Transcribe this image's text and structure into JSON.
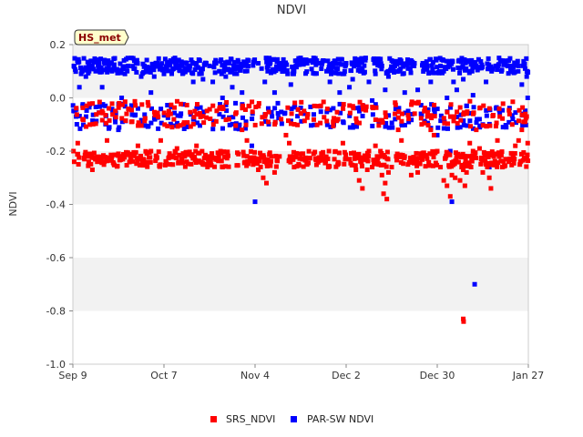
{
  "chart_data": {
    "type": "scatter",
    "title": "NDVI",
    "xlabel": "",
    "ylabel": "NDVI",
    "badge": "HS_met",
    "x_start": "Sep 9",
    "x_range_days": [
      0,
      140
    ],
    "ylim": [
      -1.0,
      0.2
    ],
    "x_ticks": [
      {
        "label": "Sep 9",
        "day": 0
      },
      {
        "label": "Oct 7",
        "day": 28
      },
      {
        "label": "Nov 4",
        "day": 56
      },
      {
        "label": "Dec 2",
        "day": 84
      },
      {
        "label": "Dec 30",
        "day": 112
      },
      {
        "label": "Jan 27",
        "day": 140
      }
    ],
    "y_ticks": [
      {
        "label": "0.2",
        "value": 0.2
      },
      {
        "label": "0.0",
        "value": 0.0
      },
      {
        "label": "-0.2",
        "value": -0.2
      },
      {
        "label": "-0.4",
        "value": -0.4
      },
      {
        "label": "-0.6",
        "value": -0.6
      },
      {
        "label": "-0.8",
        "value": -0.8
      },
      {
        "label": "-1.0",
        "value": -1.0
      }
    ],
    "bands": [
      {
        "from": 0.0,
        "to": 0.2
      },
      {
        "from": -0.4,
        "to": -0.2
      },
      {
        "from": -0.8,
        "to": -0.6
      }
    ],
    "series": [
      {
        "name": "SRS_NDVI",
        "color": "#ff0000",
        "daily_pattern": {
          "morning": -0.06,
          "midday": -0.23,
          "spread": 0.03
        },
        "points": [
          [
            0.2,
            -0.2
          ],
          [
            0.4,
            -0.24
          ],
          [
            1.5,
            -0.17
          ],
          [
            3.0,
            -0.08
          ],
          [
            4.5,
            -0.22
          ],
          [
            6.0,
            -0.27
          ],
          [
            7.5,
            -0.24
          ],
          [
            9.0,
            -0.05
          ],
          [
            10.5,
            -0.16
          ],
          [
            12.0,
            -0.22
          ],
          [
            14.0,
            -0.21
          ],
          [
            16.5,
            -0.06
          ],
          [
            18.0,
            -0.09
          ],
          [
            20.0,
            -0.18
          ],
          [
            22.0,
            -0.25
          ],
          [
            24.0,
            -0.2
          ],
          [
            27.0,
            -0.16
          ],
          [
            29.5,
            -0.05
          ],
          [
            30.5,
            -0.11
          ],
          [
            32.0,
            -0.19
          ],
          [
            35.0,
            -0.24
          ],
          [
            37.5,
            -0.05
          ],
          [
            38.0,
            -0.18
          ],
          [
            40.0,
            -0.25
          ],
          [
            42.0,
            -0.22
          ],
          [
            44.0,
            -0.23
          ],
          [
            46.0,
            -0.26
          ],
          [
            48.0,
            -0.08
          ],
          [
            50.0,
            -0.06
          ],
          [
            52.0,
            -0.12
          ],
          [
            53.5,
            -0.16
          ],
          [
            55.0,
            -0.23
          ],
          [
            57.0,
            -0.27
          ],
          [
            58.5,
            -0.3
          ],
          [
            59.5,
            -0.32
          ],
          [
            61.0,
            -0.22
          ],
          [
            62.0,
            -0.28
          ],
          [
            63.5,
            -0.22
          ],
          [
            64.0,
            -0.08
          ],
          [
            65.5,
            -0.14
          ],
          [
            66.5,
            -0.17
          ],
          [
            67.0,
            -0.23
          ],
          [
            68.0,
            -0.26
          ],
          [
            70.0,
            -0.21
          ],
          [
            72.0,
            -0.25
          ],
          [
            74.0,
            -0.21
          ],
          [
            76.0,
            -0.23
          ],
          [
            78.5,
            -0.26
          ],
          [
            80.0,
            -0.09
          ],
          [
            81.5,
            -0.08
          ],
          [
            83.0,
            -0.17
          ],
          [
            85.0,
            -0.23
          ],
          [
            87.0,
            -0.27
          ],
          [
            88.0,
            -0.31
          ],
          [
            89.0,
            -0.34
          ],
          [
            90.5,
            -0.27
          ],
          [
            91.0,
            -0.2
          ],
          [
            92.0,
            -0.26
          ],
          [
            93.0,
            -0.18
          ],
          [
            93.5,
            -0.22
          ],
          [
            94.0,
            -0.25
          ],
          [
            95.0,
            -0.29
          ],
          [
            95.5,
            -0.36
          ],
          [
            96.0,
            -0.32
          ],
          [
            96.5,
            -0.38
          ],
          [
            97.0,
            -0.28
          ],
          [
            98.0,
            -0.26
          ],
          [
            99.0,
            -0.06
          ],
          [
            100.0,
            -0.12
          ],
          [
            101.0,
            -0.16
          ],
          [
            102.0,
            -0.22
          ],
          [
            103.0,
            -0.25
          ],
          [
            104.0,
            -0.29
          ],
          [
            105.0,
            -0.24
          ],
          [
            106.0,
            -0.28
          ],
          [
            107.0,
            -0.22
          ],
          [
            108.0,
            -0.05
          ],
          [
            109.0,
            -0.07
          ],
          [
            110.0,
            -0.12
          ],
          [
            111.0,
            -0.14
          ],
          [
            112.0,
            -0.2
          ],
          [
            113.0,
            -0.26
          ],
          [
            114.0,
            -0.31
          ],
          [
            115.0,
            -0.33
          ],
          [
            116.0,
            -0.37
          ],
          [
            116.5,
            -0.29
          ],
          [
            117.0,
            -0.24
          ],
          [
            117.5,
            -0.3
          ],
          [
            118.0,
            -0.22
          ],
          [
            119.0,
            -0.31
          ],
          [
            119.5,
            -0.26
          ],
          [
            120.0,
            -0.27
          ],
          [
            120.5,
            -0.33
          ],
          [
            121.0,
            -0.28
          ],
          [
            122.0,
            -0.17
          ],
          [
            123.0,
            -0.2
          ],
          [
            124.0,
            -0.12
          ],
          [
            125.0,
            -0.19
          ],
          [
            125.5,
            -0.23
          ],
          [
            126.0,
            -0.28
          ],
          [
            127.0,
            -0.25
          ],
          [
            128.0,
            -0.3
          ],
          [
            128.5,
            -0.34
          ],
          [
            129.5,
            -0.21
          ],
          [
            130.5,
            -0.16
          ],
          [
            131.0,
            -0.22
          ],
          [
            132.0,
            -0.26
          ],
          [
            133.0,
            -0.23
          ],
          [
            134.0,
            -0.24
          ],
          [
            135.0,
            -0.21
          ],
          [
            136.0,
            -0.18
          ],
          [
            137.0,
            -0.16
          ],
          [
            138.0,
            -0.12
          ],
          [
            138.5,
            -0.09
          ],
          [
            139.0,
            -0.09
          ],
          [
            139.5,
            -0.07
          ],
          [
            139.8,
            -0.17
          ],
          [
            120.0,
            -0.83
          ],
          [
            120.1,
            -0.84
          ]
        ]
      },
      {
        "name": "PAR-SW NDVI",
        "color": "#0000ff",
        "daily_pattern": {
          "morning": -0.07,
          "midday": 0.12,
          "spread": 0.03
        },
        "points": [
          [
            0.3,
            0.12
          ],
          [
            0.6,
            -0.05
          ],
          [
            1.0,
            -0.07
          ],
          [
            2.0,
            0.04
          ],
          [
            3.0,
            -0.03
          ],
          [
            4.0,
            0.08
          ],
          [
            5.0,
            0.1
          ],
          [
            6.0,
            0.12
          ],
          [
            7.0,
            0.1
          ],
          [
            8.0,
            0.13
          ],
          [
            9.0,
            0.04
          ],
          [
            10.0,
            -0.03
          ],
          [
            11.0,
            0.12
          ],
          [
            12.0,
            0.1
          ],
          [
            13.0,
            -0.08
          ],
          [
            14.0,
            -0.12
          ],
          [
            15.0,
            0.0
          ],
          [
            16.0,
            0.09
          ],
          [
            17.0,
            0.12
          ],
          [
            18.0,
            0.15
          ],
          [
            19.0,
            0.11
          ],
          [
            20.0,
            -0.04
          ],
          [
            21.0,
            0.08
          ],
          [
            22.0,
            0.12
          ],
          [
            23.0,
            0.11
          ],
          [
            24.0,
            0.02
          ],
          [
            25.0,
            0.08
          ],
          [
            26.0,
            0.13
          ],
          [
            27.0,
            0.12
          ],
          [
            28.0,
            0.09
          ],
          [
            29.0,
            0.13
          ],
          [
            30.0,
            0.14
          ],
          [
            31.0,
            0.11
          ],
          [
            32.0,
            0.13
          ],
          [
            33.0,
            0.12
          ],
          [
            34.0,
            0.1
          ],
          [
            35.0,
            0.13
          ],
          [
            36.0,
            0.12
          ],
          [
            37.0,
            0.06
          ],
          [
            38.0,
            0.13
          ],
          [
            39.0,
            0.14
          ],
          [
            40.0,
            0.07
          ],
          [
            41.0,
            0.13
          ],
          [
            42.0,
            0.12
          ],
          [
            43.0,
            0.06
          ],
          [
            44.0,
            0.13
          ],
          [
            45.0,
            0.1
          ],
          [
            46.0,
            0.0
          ],
          [
            47.0,
            0.08
          ],
          [
            48.0,
            0.13
          ],
          [
            49.0,
            0.04
          ],
          [
            50.0,
            -0.02
          ],
          [
            51.0,
            0.11
          ],
          [
            52.0,
            0.02
          ],
          [
            53.0,
            0.1
          ],
          [
            54.0,
            0.14
          ],
          [
            55.0,
            -0.18
          ],
          [
            56.0,
            -0.39
          ],
          [
            57.0,
            0.13
          ],
          [
            58.0,
            0.11
          ],
          [
            59.0,
            0.06
          ],
          [
            60.0,
            0.12
          ],
          [
            61.0,
            0.1
          ],
          [
            62.0,
            0.02
          ],
          [
            63.0,
            -0.02
          ],
          [
            64.0,
            0.13
          ],
          [
            65.0,
            0.12
          ],
          [
            66.0,
            0.09
          ],
          [
            67.0,
            0.05
          ],
          [
            68.0,
            0.1
          ],
          [
            69.0,
            0.14
          ],
          [
            70.0,
            0.15
          ],
          [
            71.0,
            0.14
          ],
          [
            72.0,
            0.13
          ],
          [
            73.0,
            0.14
          ],
          [
            74.0,
            0.15
          ],
          [
            75.0,
            0.14
          ],
          [
            76.0,
            0.13
          ],
          [
            77.0,
            0.14
          ],
          [
            78.0,
            0.1
          ],
          [
            79.0,
            0.06
          ],
          [
            80.0,
            0.13
          ],
          [
            81.0,
            0.11
          ],
          [
            82.0,
            0.02
          ],
          [
            83.0,
            0.09
          ],
          [
            84.0,
            0.13
          ],
          [
            85.0,
            0.04
          ],
          [
            86.0,
            0.07
          ],
          [
            87.0,
            0.14
          ],
          [
            88.0,
            0.12
          ],
          [
            89.0,
            0.11
          ],
          [
            90.0,
            0.15
          ],
          [
            91.0,
            0.06
          ],
          [
            92.0,
            -0.01
          ],
          [
            93.0,
            0.09
          ],
          [
            94.0,
            0.14
          ],
          [
            95.0,
            0.12
          ],
          [
            96.0,
            0.03
          ],
          [
            97.0,
            0.08
          ],
          [
            98.0,
            0.14
          ],
          [
            99.0,
            0.12
          ],
          [
            100.0,
            0.1
          ],
          [
            101.0,
            0.13
          ],
          [
            102.0,
            0.02
          ],
          [
            103.0,
            0.11
          ],
          [
            104.0,
            0.14
          ],
          [
            105.0,
            0.13
          ],
          [
            106.0,
            0.03
          ],
          [
            107.0,
            -0.06
          ],
          [
            108.0,
            0.13
          ],
          [
            109.0,
            0.12
          ],
          [
            110.0,
            0.06
          ],
          [
            111.0,
            -0.04
          ],
          [
            112.0,
            -0.14
          ],
          [
            113.0,
            0.12
          ],
          [
            114.0,
            0.1
          ],
          [
            115.0,
            0.0
          ],
          [
            116.0,
            -0.2
          ],
          [
            116.5,
            -0.39
          ],
          [
            117.0,
            0.06
          ],
          [
            118.0,
            0.03
          ],
          [
            119.0,
            0.11
          ],
          [
            120.0,
            0.07
          ],
          [
            121.0,
            -0.03
          ],
          [
            122.0,
            0.1
          ],
          [
            123.0,
            0.01
          ],
          [
            124.0,
            0.12
          ],
          [
            125.0,
            -0.08
          ],
          [
            126.0,
            -0.1
          ],
          [
            127.0,
            0.06
          ],
          [
            128.0,
            -0.26
          ],
          [
            129.0,
            0.11
          ],
          [
            130.0,
            0.12
          ],
          [
            131.0,
            0.15
          ],
          [
            132.0,
            0.14
          ],
          [
            133.0,
            0.13
          ],
          [
            134.0,
            0.14
          ],
          [
            135.0,
            0.12
          ],
          [
            136.0,
            0.13
          ],
          [
            137.0,
            0.12
          ],
          [
            138.0,
            0.05
          ],
          [
            138.5,
            -0.06
          ],
          [
            139.0,
            0.11
          ],
          [
            139.5,
            0.08
          ],
          [
            139.8,
            0.0
          ],
          [
            123.5,
            -0.7
          ]
        ]
      }
    ]
  }
}
